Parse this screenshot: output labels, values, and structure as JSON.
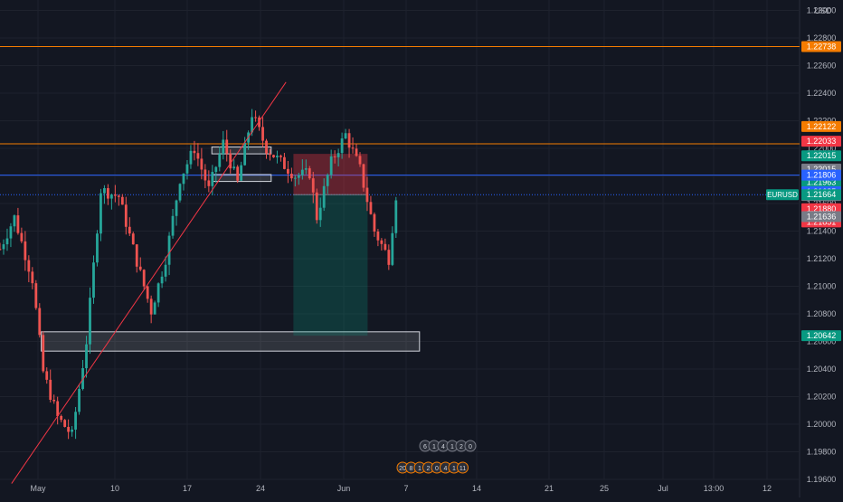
{
  "chart_data": {
    "type": "candlestick",
    "symbol": "EURUSD",
    "currency": "USD",
    "y_range": [
      1.1955,
      1.2305
    ],
    "y_ticks": [
      "1.23000",
      "1.22800",
      "1.22600",
      "1.22400",
      "1.22200",
      "1.22000",
      "1.21800",
      "1.21600",
      "1.21400",
      "1.21200",
      "1.21000",
      "1.20800",
      "1.20600",
      "1.20400",
      "1.20200",
      "1.20000",
      "1.19800",
      "1.19600"
    ],
    "x_labels": [
      "May",
      "10",
      "17",
      "24",
      "Jun",
      "7",
      "14",
      "21",
      "25",
      "Jul",
      "13:00",
      "12"
    ],
    "price_tags": [
      {
        "text": "1.22738",
        "price": 1.22738,
        "color": "#f57c00"
      },
      {
        "text": "1.22122",
        "price": 1.22158,
        "color": "#f57c00"
      },
      {
        "text": "1.22033",
        "price": 1.22052,
        "color": "#f23645"
      },
      {
        "text": "1.22015",
        "price": 1.21946,
        "color": "#089981"
      },
      {
        "text": "1.22015",
        "price": 1.2185,
        "color": "#787b86"
      },
      {
        "text": "1.21963",
        "price": 1.21754,
        "color": "#089981"
      },
      {
        "text": "1.21886",
        "price": 1.21658,
        "color": "#787b86"
      },
      {
        "text": "1.21880",
        "price": 1.21562,
        "color": "#f23645"
      },
      {
        "text": "1.21851",
        "price": 1.21466,
        "color": "#f23645"
      },
      {
        "text": "1.21806",
        "price": 1.21806,
        "color": "#2962ff"
      },
      {
        "text": "1.21685",
        "price": 1.21685,
        "color": "#2962ff"
      },
      {
        "text": "1.21664",
        "price": 1.21664,
        "color": "#089981"
      },
      {
        "text": "1.21636",
        "price": 1.21505,
        "color": "#787b86"
      },
      {
        "text": "1.20642",
        "price": 1.20642,
        "color": "#089981"
      }
    ],
    "symbol_price": 1.21664,
    "horizontal_lines": [
      {
        "price": 1.22738,
        "color": "#f57c00"
      },
      {
        "price": 1.22033,
        "color": "#f57c00"
      },
      {
        "price": 1.21806,
        "color": "#2962ff"
      },
      {
        "price": 1.21664,
        "color": "#2962ff",
        "dotted": true
      }
    ],
    "trendline": {
      "from": {
        "x": "2021-04-30",
        "y": 1.1957
      },
      "to": {
        "x": "2021-06-06",
        "y": 1.2248
      },
      "color": "#f23645"
    },
    "zones": [
      {
        "x1": "2021-05-04",
        "x2": "2021-06-24",
        "y1": 1.2053,
        "y2": 1.2067
      },
      {
        "x1": "2021-05-27",
        "x2": "2021-06-04",
        "y1": 1.2196,
        "y2": 1.2201
      },
      {
        "x1": "2021-05-27",
        "x2": "2021-06-04",
        "y1": 1.2176,
        "y2": 1.2181
      }
    ],
    "position": {
      "type": "short",
      "start": "2021-06-07",
      "end": "2021-06-17",
      "entry": 1.21664,
      "stop": 1.2196,
      "target": 1.20642
    },
    "events_row1": [
      "6",
      "1",
      "4",
      "1",
      "2",
      "0"
    ],
    "events_row2": [
      "20",
      "8",
      "1",
      "2",
      "0",
      "4",
      "1",
      "11"
    ],
    "colors": {
      "up": "#26a69a",
      "down": "#ef5350",
      "background": "#131722"
    }
  }
}
